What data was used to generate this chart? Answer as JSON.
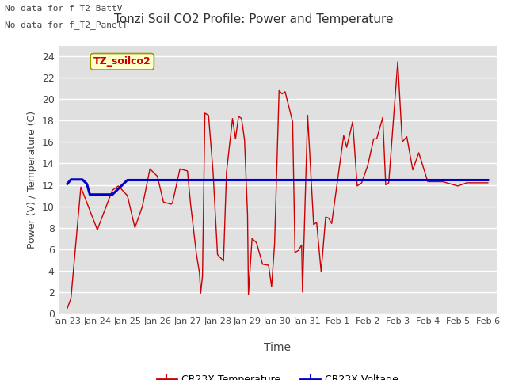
{
  "title": "Tonzi Soil CO2 Profile: Power and Temperature",
  "xlabel": "Time",
  "ylabel": "Power (V) / Temperature (C)",
  "top_left_text_line1": "No data for f_T2_BattV",
  "top_left_text_line2": "No data for f_T2_PanelT",
  "legend_box_label": "TZ_soilco2",
  "legend_line1": "CR23X Temperature",
  "legend_line2": "CR23X Voltage",
  "ylim": [
    0,
    25
  ],
  "background_color": "#ffffff",
  "plot_bg_color": "#e0e0e0",
  "grid_color": "#f5f5f5",
  "red_color": "#cc0000",
  "blue_color": "#0000cc",
  "xtick_labels": [
    "Jan 23",
    "Jan 24",
    "Jan 25",
    "Jan 26",
    "Jan 27",
    "Jan 28",
    "Jan 29",
    "Jan 30",
    "Jan 31",
    "Feb 1",
    "Feb 2",
    "Feb 3",
    "Feb 4",
    "Feb 5",
    "Feb 6"
  ],
  "red_x": [
    0.0,
    0.12,
    0.45,
    1.0,
    1.05,
    1.5,
    1.7,
    2.0,
    2.25,
    2.5,
    2.75,
    3.0,
    3.2,
    3.45,
    3.5,
    3.75,
    4.0,
    4.1,
    4.3,
    4.4,
    4.44,
    4.5,
    4.58,
    4.7,
    4.85,
    5.0,
    5.1,
    5.2,
    5.3,
    5.5,
    5.6,
    5.7,
    5.8,
    5.9,
    6.0,
    6.03,
    6.15,
    6.3,
    6.5,
    6.7,
    6.8,
    6.9,
    7.05,
    7.15,
    7.25,
    7.5,
    7.58,
    7.7,
    7.8,
    7.83,
    8.0,
    8.2,
    8.3,
    8.45,
    8.6,
    8.7,
    8.8,
    9.2,
    9.3,
    9.5,
    9.65,
    9.8,
    10.0,
    10.2,
    10.3,
    10.5,
    10.6,
    10.7,
    11.0,
    11.15,
    11.3,
    11.5,
    11.7,
    12.0,
    12.5,
    13.0,
    13.3,
    14.0
  ],
  "red_y": [
    0.5,
    1.4,
    11.8,
    7.8,
    8.2,
    11.5,
    11.9,
    11.0,
    8.0,
    10.0,
    13.5,
    12.8,
    10.4,
    10.2,
    10.3,
    13.5,
    13.3,
    10.3,
    5.5,
    3.8,
    1.9,
    3.5,
    18.7,
    18.5,
    13.3,
    5.5,
    5.2,
    4.9,
    13.2,
    18.2,
    16.3,
    18.4,
    18.2,
    16.2,
    9.2,
    1.8,
    7.0,
    6.6,
    4.6,
    4.5,
    2.5,
    6.5,
    20.8,
    20.5,
    20.7,
    17.9,
    5.7,
    5.9,
    6.4,
    2.0,
    18.5,
    8.3,
    8.5,
    3.9,
    9.0,
    8.9,
    8.4,
    16.6,
    15.5,
    17.9,
    11.9,
    12.2,
    13.8,
    16.3,
    16.3,
    18.3,
    12.0,
    12.2,
    23.5,
    16.0,
    16.5,
    13.4,
    15.0,
    12.3,
    12.3,
    11.9,
    12.2,
    12.2
  ],
  "blue_x": [
    0.0,
    0.12,
    0.5,
    0.65,
    0.75,
    1.0,
    1.5,
    2.0,
    14.0
  ],
  "blue_y": [
    12.1,
    12.5,
    12.5,
    12.1,
    11.1,
    11.1,
    11.1,
    12.45,
    12.45
  ]
}
